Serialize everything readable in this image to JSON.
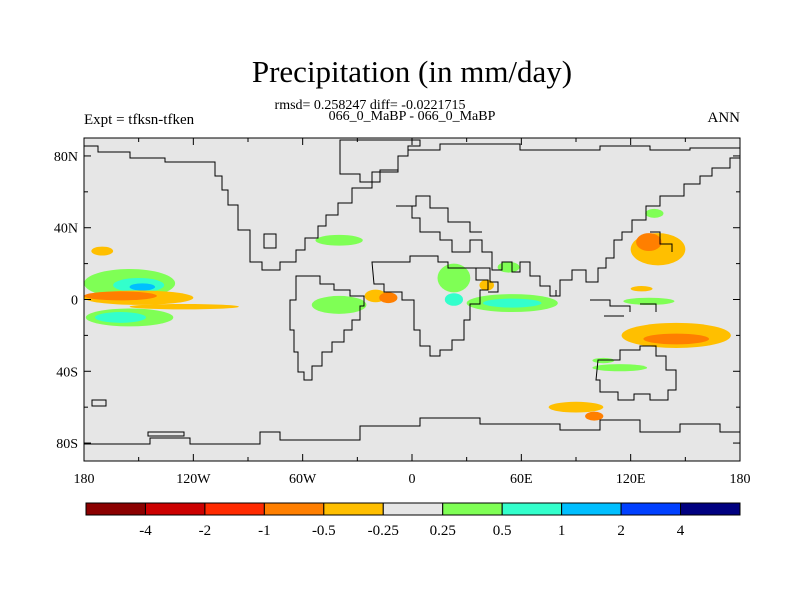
{
  "chart_data": {
    "type": "contour-map",
    "title": "Precipitation (in mm/day)",
    "stats_line": "rmsd= 0.258247 diff= -0.0221715",
    "case_line": "066_0_MaBP - 066_0_MaBP",
    "left_label": "Expt = tfksn-tfken",
    "right_label": "ANN",
    "x_range": [
      -180,
      180
    ],
    "y_range": [
      -90,
      90
    ],
    "x_ticks": [
      {
        "v": -180,
        "label": "180"
      },
      {
        "v": -120,
        "label": "120W"
      },
      {
        "v": -60,
        "label": "60W"
      },
      {
        "v": 0,
        "label": "0"
      },
      {
        "v": 60,
        "label": "60E"
      },
      {
        "v": 120,
        "label": "120E"
      },
      {
        "v": 180,
        "label": "180"
      }
    ],
    "y_ticks": [
      {
        "v": 80,
        "label": "80N"
      },
      {
        "v": 40,
        "label": "40N"
      },
      {
        "v": 0,
        "label": "0"
      },
      {
        "v": -40,
        "label": "40S"
      },
      {
        "v": -80,
        "label": "80S"
      }
    ],
    "colorbar": {
      "colors": [
        "#8b0000",
        "#cc0000",
        "#ff2a00",
        "#ff7f00",
        "#ffbf00",
        "#e6e6e6",
        "#7fff55",
        "#33ffcc",
        "#00bfff",
        "#0040ff",
        "#000080"
      ],
      "labels": [
        "-4",
        "-2",
        "-1",
        "-0.5",
        "-0.25",
        "0.25",
        "0.5",
        "1",
        "2",
        "4"
      ]
    },
    "anomalies": [
      {
        "lon": -155,
        "lat": 9,
        "w": 50,
        "h": 16,
        "level": "0.5"
      },
      {
        "lon": -150,
        "lat": 8,
        "w": 28,
        "h": 8,
        "level": "1"
      },
      {
        "lon": -148,
        "lat": 7,
        "w": 14,
        "h": 4,
        "level": "2"
      },
      {
        "lon": -155,
        "lat": -10,
        "w": 48,
        "h": 10,
        "level": "0.5"
      },
      {
        "lon": -160,
        "lat": -10,
        "w": 28,
        "h": 6,
        "level": "1"
      },
      {
        "lon": -150,
        "lat": 1,
        "w": 60,
        "h": 8,
        "level": "-0.25"
      },
      {
        "lon": -160,
        "lat": 2,
        "w": 40,
        "h": 5,
        "level": "-0.5"
      },
      {
        "lon": -125,
        "lat": -4,
        "w": 60,
        "h": 3,
        "level": "-0.25"
      },
      {
        "lon": -170,
        "lat": 27,
        "w": 12,
        "h": 5,
        "level": "-0.25"
      },
      {
        "lon": -40,
        "lat": 33,
        "w": 26,
        "h": 6,
        "level": "0.5"
      },
      {
        "lon": -40,
        "lat": -3,
        "w": 30,
        "h": 10,
        "level": "0.5"
      },
      {
        "lon": -20,
        "lat": 2,
        "w": 12,
        "h": 7,
        "level": "-0.25"
      },
      {
        "lon": -13,
        "lat": 1,
        "w": 10,
        "h": 6,
        "level": "-0.5"
      },
      {
        "lon": 23,
        "lat": 12,
        "w": 18,
        "h": 16,
        "level": "0.5"
      },
      {
        "lon": 23,
        "lat": 0,
        "w": 10,
        "h": 7,
        "level": "1"
      },
      {
        "lon": 55,
        "lat": -2,
        "w": 50,
        "h": 10,
        "level": "0.5"
      },
      {
        "lon": 55,
        "lat": -2,
        "w": 32,
        "h": 5,
        "level": "1"
      },
      {
        "lon": 53,
        "lat": 18,
        "w": 12,
        "h": 6,
        "level": "0.25"
      },
      {
        "lon": 41,
        "lat": 8,
        "w": 8,
        "h": 6,
        "level": "-0.25"
      },
      {
        "lon": 135,
        "lat": 28,
        "w": 30,
        "h": 18,
        "level": "-0.25"
      },
      {
        "lon": 130,
        "lat": 32,
        "w": 14,
        "h": 10,
        "level": "-0.5"
      },
      {
        "lon": 145,
        "lat": -20,
        "w": 60,
        "h": 14,
        "level": "-0.25"
      },
      {
        "lon": 145,
        "lat": -22,
        "w": 36,
        "h": 6,
        "level": "-0.5"
      },
      {
        "lon": 130,
        "lat": -1,
        "w": 28,
        "h": 4,
        "level": "0.5"
      },
      {
        "lon": 126,
        "lat": 6,
        "w": 12,
        "h": 3,
        "level": "-0.25"
      },
      {
        "lon": 133,
        "lat": 48,
        "w": 10,
        "h": 5,
        "level": "0.5"
      },
      {
        "lon": 90,
        "lat": -60,
        "w": 30,
        "h": 6,
        "level": "-0.25"
      },
      {
        "lon": 100,
        "lat": -65,
        "w": 10,
        "h": 5,
        "level": "-0.5"
      },
      {
        "lon": 114,
        "lat": -38,
        "w": 30,
        "h": 4,
        "level": "0.5"
      },
      {
        "lon": 105,
        "lat": -34,
        "w": 12,
        "h": 3,
        "level": "0.25"
      }
    ]
  }
}
